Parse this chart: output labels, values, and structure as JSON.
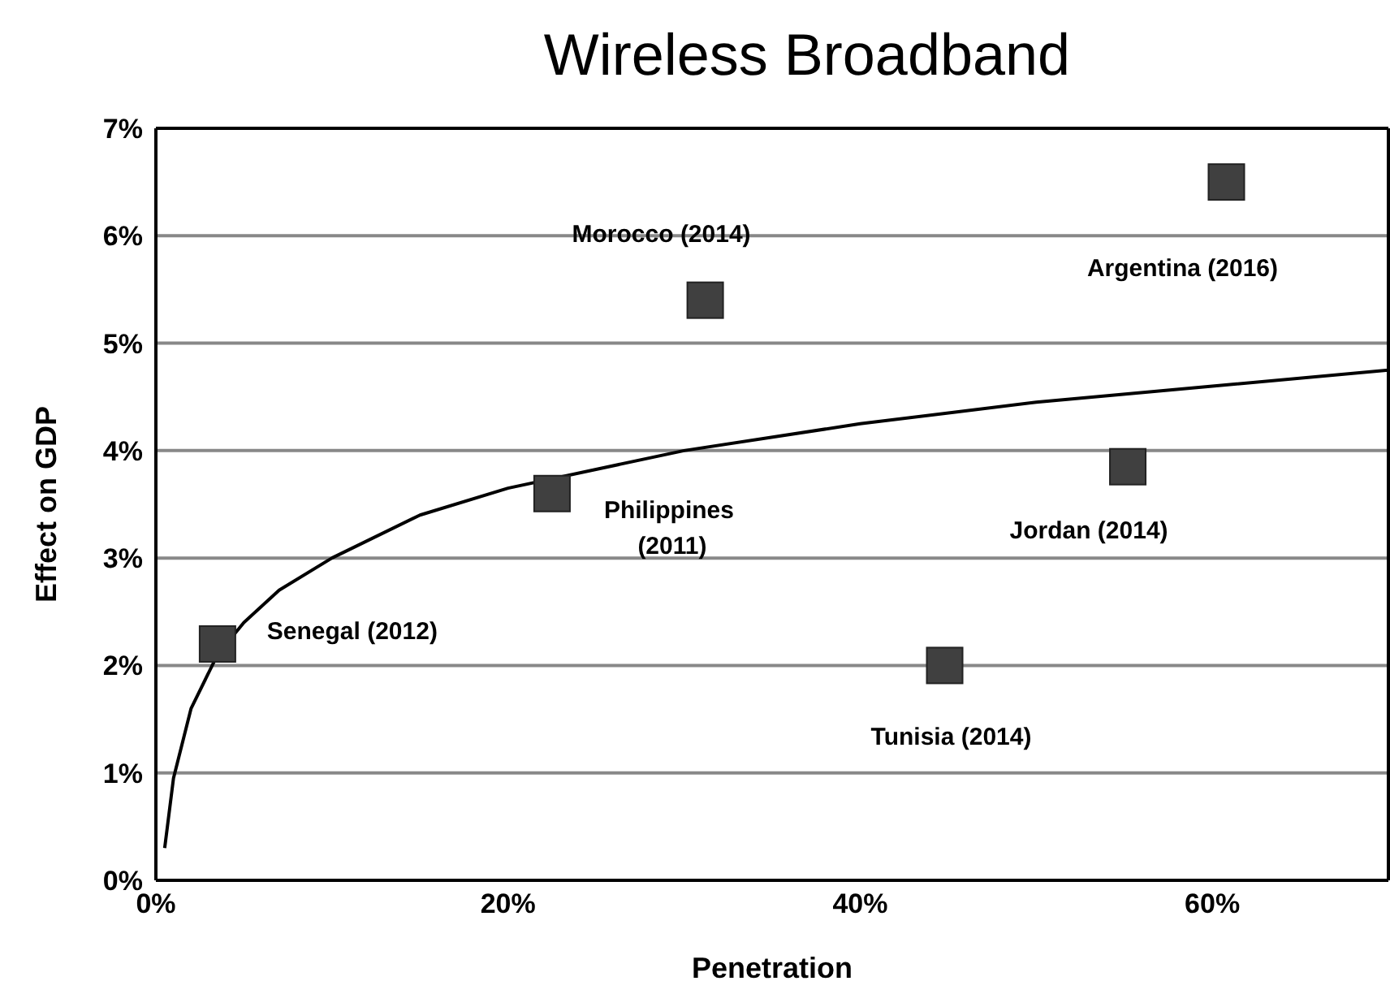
{
  "chart_data": {
    "type": "scatter",
    "title": "Wireless Broadband",
    "xlabel": "Penetration",
    "ylabel": "Effect on GDP",
    "x": [
      3.5,
      22.5,
      31.2,
      60.8,
      55.2,
      44.8
    ],
    "series": [
      {
        "color": "#404040",
        "values": [
          2.2,
          3.6,
          5.4,
          6.5,
          3.85,
          2.0
        ]
      },
      {
        "type": "line",
        "color": "#000000",
        "x": [
          0.5,
          1,
          2,
          3.5,
          5,
          7,
          10,
          15,
          20,
          30,
          40,
          50,
          60,
          70
        ],
        "values": [
          0.3,
          0.95,
          1.6,
          2.1,
          2.4,
          2.7,
          3.0,
          3.4,
          3.65,
          4.0,
          4.25,
          4.45,
          4.6,
          4.75
        ],
        "marker": "none"
      }
    ],
    "annotations": [
      {
        "text": "Senegal (2012)",
        "x": 3.5,
        "y": 2.2
      },
      {
        "text": "Philippines (2011)",
        "x": 22.5,
        "y": 3.6
      },
      {
        "text": "Morocco (2014)",
        "x": 31.2,
        "y": 5.4
      },
      {
        "text": "Argentina (2016)",
        "x": 60.8,
        "y": 6.5
      },
      {
        "text": "Jordan (2014)",
        "x": 55.2,
        "y": 3.85
      },
      {
        "text": "Tunisia (2014)",
        "x": 44.8,
        "y": 2.0
      }
    ],
    "xlim": [
      0,
      70
    ],
    "xticks": [
      {
        "value": 0,
        "label": "0%"
      },
      {
        "value": 20,
        "label": "20%"
      },
      {
        "value": 40,
        "label": "40%"
      },
      {
        "value": 60,
        "label": "60%"
      }
    ],
    "ylim": [
      0,
      7
    ],
    "yticks": [
      {
        "value": 0,
        "label": "0%"
      },
      {
        "value": 1,
        "label": "1%"
      },
      {
        "value": 2,
        "label": "2%"
      },
      {
        "value": 3,
        "label": "3%"
      },
      {
        "value": 4,
        "label": "4%"
      },
      {
        "value": 5,
        "label": "5%"
      },
      {
        "value": 6,
        "label": "6%"
      },
      {
        "value": 7,
        "label": "7%"
      }
    ],
    "grid": "y",
    "marker": "square",
    "line_style": "solid"
  }
}
